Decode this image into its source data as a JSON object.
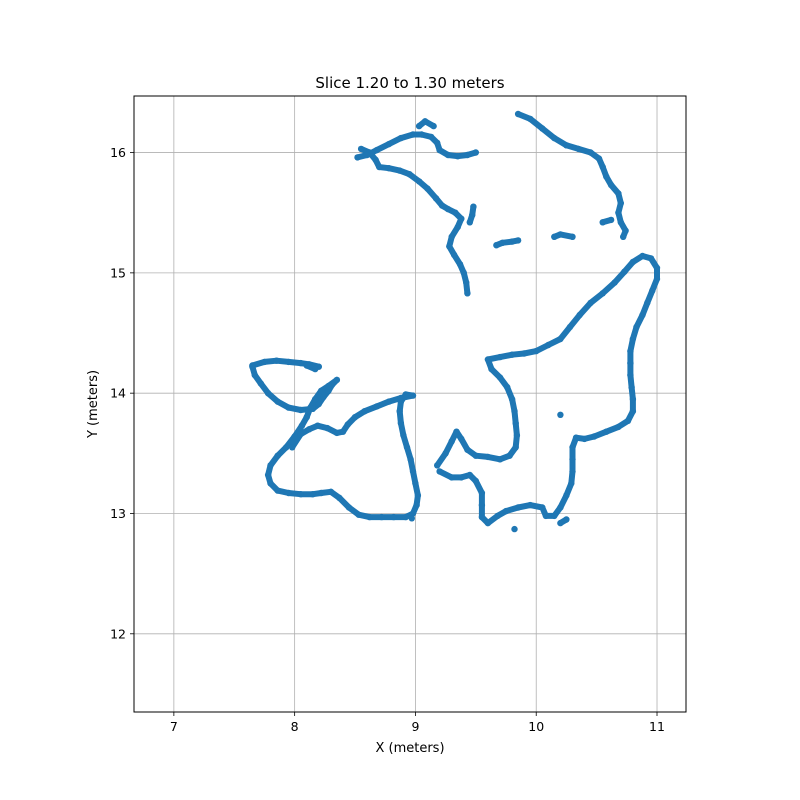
{
  "chart_data": {
    "type": "scatter",
    "title": "Slice 1.20 to 1.30 meters",
    "xlabel": "X (meters)",
    "ylabel": "Y (meters)",
    "xlim": [
      6.67,
      11.24
    ],
    "ylim": [
      11.35,
      16.47
    ],
    "xticks": [
      7,
      8,
      9,
      10,
      11
    ],
    "yticks": [
      12,
      13,
      14,
      15,
      16
    ],
    "xtick_labels": [
      "7",
      "8",
      "9",
      "10",
      "11"
    ],
    "ytick_labels": [
      "12",
      "13",
      "14",
      "15",
      "16"
    ],
    "grid": true,
    "marker_color": "#1f77b4",
    "series": [
      {
        "values": [
          [
            7.65,
            14.23
          ],
          [
            7.75,
            14.26
          ],
          [
            7.85,
            14.27
          ],
          [
            7.95,
            14.26
          ],
          [
            8.05,
            14.25
          ],
          [
            8.12,
            14.24
          ],
          [
            8.2,
            14.22
          ]
        ]
      },
      {
        "values": [
          [
            7.65,
            14.22
          ],
          [
            7.67,
            14.15
          ],
          [
            7.72,
            14.08
          ],
          [
            7.78,
            14.0
          ],
          [
            7.86,
            13.93
          ],
          [
            7.95,
            13.88
          ],
          [
            8.05,
            13.86
          ],
          [
            8.15,
            13.87
          ],
          [
            8.2,
            13.91
          ],
          [
            8.24,
            13.97
          ],
          [
            8.28,
            14.02
          ],
          [
            8.31,
            14.07
          ],
          [
            8.35,
            14.11
          ],
          [
            8.28,
            14.06
          ],
          [
            8.22,
            14.02
          ],
          [
            8.17,
            13.95
          ],
          [
            8.13,
            13.88
          ],
          [
            8.1,
            13.8
          ],
          [
            8.06,
            13.73
          ],
          [
            8.0,
            13.64
          ],
          [
            7.93,
            13.55
          ],
          [
            7.86,
            13.48
          ],
          [
            7.8,
            13.4
          ],
          [
            7.78,
            13.32
          ],
          [
            7.8,
            13.25
          ],
          [
            7.86,
            13.19
          ],
          [
            7.95,
            13.17
          ],
          [
            8.05,
            13.16
          ],
          [
            8.15,
            13.16
          ],
          [
            8.22,
            13.17
          ],
          [
            8.3,
            13.18
          ],
          [
            8.37,
            13.13
          ],
          [
            8.45,
            13.05
          ],
          [
            8.53,
            12.99
          ],
          [
            8.62,
            12.97
          ],
          [
            8.72,
            12.97
          ],
          [
            8.82,
            12.97
          ],
          [
            8.92,
            12.97
          ],
          [
            8.98,
            13.0
          ],
          [
            9.01,
            13.07
          ],
          [
            9.02,
            13.15
          ],
          [
            9.0,
            13.25
          ],
          [
            8.98,
            13.35
          ],
          [
            8.96,
            13.45
          ],
          [
            8.93,
            13.55
          ],
          [
            8.9,
            13.65
          ],
          [
            8.88,
            13.75
          ],
          [
            8.87,
            13.85
          ],
          [
            8.88,
            13.93
          ],
          [
            8.92,
            13.99
          ],
          [
            8.98,
            13.98
          ],
          [
            8.88,
            13.96
          ],
          [
            8.78,
            13.93
          ],
          [
            8.68,
            13.89
          ],
          [
            8.58,
            13.85
          ],
          [
            8.5,
            13.8
          ],
          [
            8.44,
            13.74
          ],
          [
            8.4,
            13.68
          ],
          [
            8.35,
            13.67
          ],
          [
            8.27,
            13.71
          ],
          [
            8.19,
            13.73
          ],
          [
            8.12,
            13.7
          ],
          [
            8.05,
            13.66
          ],
          [
            7.98,
            13.55
          ]
        ]
      },
      {
        "values": [
          [
            9.18,
            13.4
          ],
          [
            9.25,
            13.5
          ],
          [
            9.3,
            13.6
          ],
          [
            9.34,
            13.68
          ],
          [
            9.38,
            13.62
          ],
          [
            9.43,
            13.53
          ],
          [
            9.5,
            13.48
          ],
          [
            9.6,
            13.47
          ],
          [
            9.7,
            13.45
          ],
          [
            9.78,
            13.48
          ],
          [
            9.83,
            13.55
          ],
          [
            9.84,
            13.65
          ],
          [
            9.83,
            13.75
          ],
          [
            9.82,
            13.85
          ],
          [
            9.8,
            13.95
          ],
          [
            9.76,
            14.05
          ],
          [
            9.7,
            14.13
          ],
          [
            9.63,
            14.2
          ],
          [
            9.6,
            14.28
          ],
          [
            9.7,
            14.3
          ],
          [
            9.8,
            14.32
          ],
          [
            9.9,
            14.33
          ],
          [
            10.0,
            14.35
          ],
          [
            10.1,
            14.4
          ],
          [
            10.2,
            14.45
          ],
          [
            10.28,
            14.55
          ],
          [
            10.36,
            14.65
          ],
          [
            10.45,
            14.75
          ],
          [
            10.55,
            14.83
          ],
          [
            10.65,
            14.92
          ],
          [
            10.73,
            15.01
          ],
          [
            10.8,
            15.09
          ],
          [
            10.88,
            15.14
          ],
          [
            10.95,
            15.12
          ],
          [
            11.0,
            15.04
          ],
          [
            11.0,
            14.95
          ],
          [
            10.96,
            14.85
          ],
          [
            10.92,
            14.75
          ],
          [
            10.88,
            14.65
          ],
          [
            10.83,
            14.55
          ],
          [
            10.8,
            14.45
          ],
          [
            10.78,
            14.35
          ],
          [
            10.78,
            14.25
          ],
          [
            10.78,
            14.15
          ],
          [
            10.79,
            14.05
          ],
          [
            10.8,
            13.95
          ],
          [
            10.8,
            13.85
          ],
          [
            10.76,
            13.77
          ],
          [
            10.68,
            13.72
          ],
          [
            10.58,
            13.68
          ],
          [
            10.48,
            13.64
          ],
          [
            10.4,
            13.62
          ],
          [
            10.33,
            13.63
          ],
          [
            10.3,
            13.55
          ],
          [
            10.3,
            13.45
          ],
          [
            10.3,
            13.35
          ],
          [
            10.29,
            13.25
          ],
          [
            10.25,
            13.15
          ],
          [
            10.2,
            13.05
          ],
          [
            10.15,
            12.98
          ],
          [
            10.08,
            12.98
          ],
          [
            10.05,
            13.05
          ],
          [
            9.95,
            13.07
          ],
          [
            9.85,
            13.05
          ],
          [
            9.75,
            13.02
          ],
          [
            9.68,
            12.98
          ],
          [
            9.6,
            12.92
          ],
          [
            9.55,
            12.97
          ],
          [
            9.55,
            13.07
          ],
          [
            9.55,
            13.17
          ],
          [
            9.5,
            13.27
          ],
          [
            9.45,
            13.32
          ],
          [
            9.38,
            13.3
          ],
          [
            9.3,
            13.3
          ],
          [
            9.2,
            13.35
          ]
        ]
      },
      {
        "values": [
          [
            8.55,
            16.03
          ],
          [
            8.62,
            16.0
          ],
          [
            8.67,
            15.94
          ],
          [
            8.7,
            15.88
          ],
          [
            8.78,
            15.87
          ],
          [
            8.87,
            15.85
          ],
          [
            8.95,
            15.82
          ],
          [
            9.03,
            15.76
          ],
          [
            9.1,
            15.7
          ],
          [
            9.17,
            15.62
          ],
          [
            9.22,
            15.56
          ],
          [
            9.27,
            15.53
          ],
          [
            9.33,
            15.5
          ],
          [
            9.38,
            15.45
          ],
          [
            9.35,
            15.38
          ],
          [
            9.3,
            15.3
          ],
          [
            9.28,
            15.22
          ],
          [
            9.32,
            15.15
          ],
          [
            9.37,
            15.07
          ],
          [
            9.4,
            15.0
          ],
          [
            9.42,
            14.92
          ],
          [
            9.43,
            14.83
          ]
        ]
      },
      {
        "values": [
          [
            8.52,
            15.96
          ],
          [
            8.6,
            15.98
          ],
          [
            8.68,
            16.02
          ],
          [
            8.78,
            16.07
          ],
          [
            8.88,
            16.12
          ],
          [
            8.98,
            16.15
          ],
          [
            9.05,
            16.15
          ],
          [
            9.13,
            16.13
          ],
          [
            9.18,
            16.08
          ],
          [
            9.2,
            16.02
          ],
          [
            9.27,
            15.98
          ],
          [
            9.35,
            15.97
          ],
          [
            9.43,
            15.98
          ],
          [
            9.5,
            16.0
          ]
        ]
      },
      {
        "values": [
          [
            9.03,
            16.22
          ],
          [
            9.08,
            16.26
          ],
          [
            9.15,
            16.22
          ]
        ]
      },
      {
        "values": [
          [
            9.48,
            15.55
          ],
          [
            9.47,
            15.48
          ],
          [
            9.45,
            15.42
          ]
        ]
      },
      {
        "values": [
          [
            9.85,
            16.32
          ],
          [
            9.95,
            16.28
          ],
          [
            10.05,
            16.2
          ],
          [
            10.15,
            16.12
          ],
          [
            10.25,
            16.06
          ],
          [
            10.35,
            16.03
          ],
          [
            10.45,
            16.0
          ],
          [
            10.52,
            15.95
          ],
          [
            10.55,
            15.88
          ],
          [
            10.58,
            15.8
          ],
          [
            10.62,
            15.73
          ],
          [
            10.68,
            15.66
          ],
          [
            10.7,
            15.58
          ],
          [
            10.68,
            15.5
          ],
          [
            10.7,
            15.42
          ],
          [
            10.74,
            15.35
          ],
          [
            10.72,
            15.3
          ]
        ]
      },
      {
        "values": [
          [
            9.67,
            15.23
          ],
          [
            9.72,
            15.25
          ],
          [
            9.8,
            15.26
          ],
          [
            9.85,
            15.27
          ]
        ]
      },
      {
        "values": [
          [
            10.15,
            15.3
          ],
          [
            10.2,
            15.32
          ],
          [
            10.3,
            15.3
          ]
        ]
      },
      {
        "values": [
          [
            10.55,
            15.42
          ],
          [
            10.62,
            15.44
          ]
        ]
      },
      {
        "values": [
          [
            8.1,
            14.23
          ],
          [
            8.17,
            14.2
          ]
        ]
      },
      {
        "values": [
          [
            10.2,
            13.82
          ]
        ]
      },
      {
        "values": [
          [
            9.82,
            12.87
          ]
        ]
      },
      {
        "values": [
          [
            10.2,
            12.92
          ],
          [
            10.25,
            12.95
          ]
        ]
      },
      {
        "values": [
          [
            8.97,
            12.96
          ]
        ]
      }
    ]
  }
}
